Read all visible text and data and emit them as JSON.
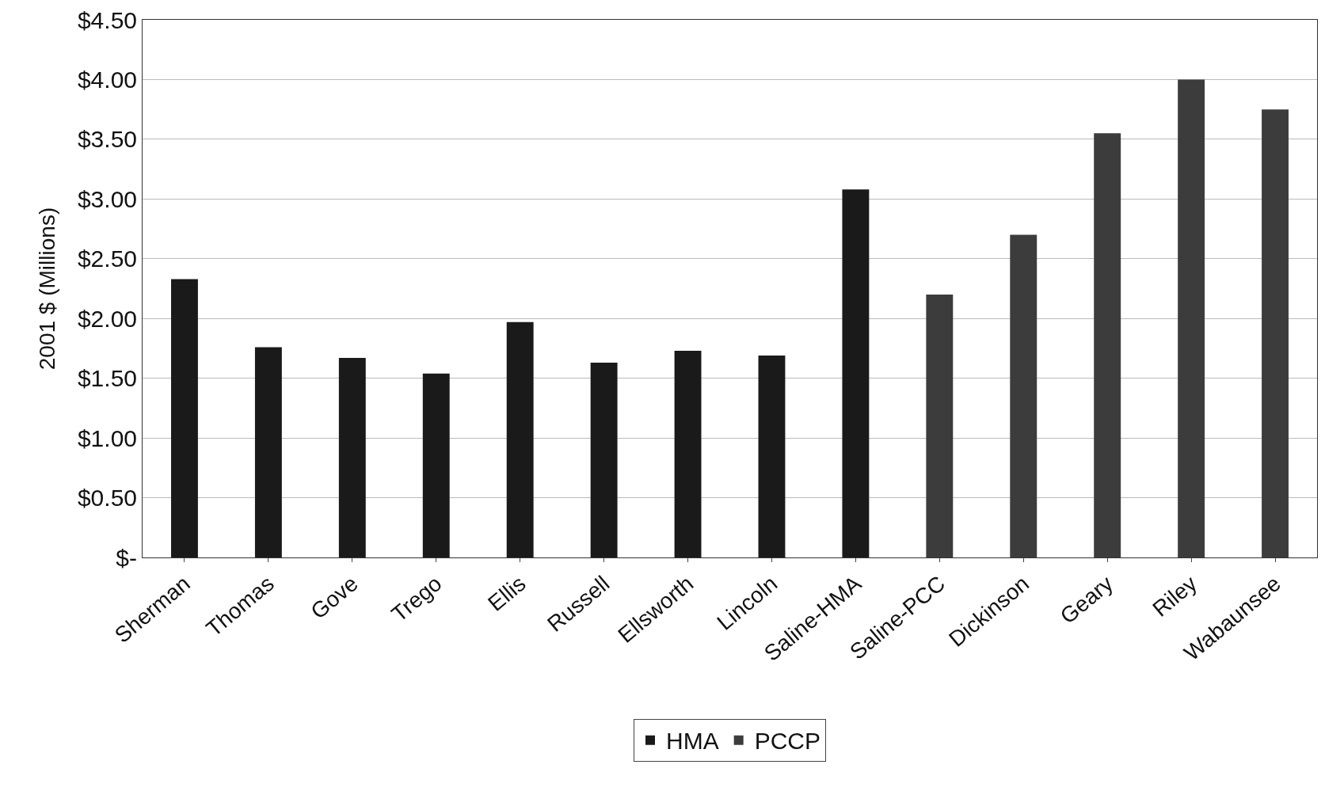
{
  "chart_data": {
    "type": "bar",
    "ylabel": "2001 $ (Millions)",
    "categories": [
      "Sherman",
      "Thomas",
      "Gove",
      "Trego",
      "Ellis",
      "Russell",
      "Ellsworth",
      "Lincoln",
      "Saline-HMA",
      "Saline-PCC",
      "Dickinson",
      "Geary",
      "Riley",
      "Wabaunsee"
    ],
    "series": [
      {
        "name": "HMA",
        "color": "#1a1a1a",
        "values": [
          2.33,
          1.76,
          1.67,
          1.54,
          1.97,
          1.63,
          1.73,
          1.69,
          3.08,
          null,
          null,
          null,
          null,
          null
        ]
      },
      {
        "name": "PCCP",
        "color": "#3c3c3c",
        "values": [
          null,
          null,
          null,
          null,
          null,
          null,
          null,
          null,
          null,
          2.2,
          2.7,
          3.55,
          4.0,
          3.75
        ]
      }
    ],
    "ylim": [
      0,
      4.5
    ],
    "yticks": [
      {
        "value": 0,
        "label": "$-"
      },
      {
        "value": 0.5,
        "label": "$0.50"
      },
      {
        "value": 1,
        "label": "$1.00"
      },
      {
        "value": 1.5,
        "label": "$1.50"
      },
      {
        "value": 2,
        "label": "$2.00"
      },
      {
        "value": 2.5,
        "label": "$2.50"
      },
      {
        "value": 3,
        "label": "$3.00"
      },
      {
        "value": 3.5,
        "label": "$3.50"
      },
      {
        "value": 4,
        "label": "$4.00"
      },
      {
        "value": 4.5,
        "label": "$4.50"
      }
    ],
    "grid": "y",
    "legend": "bottom"
  }
}
